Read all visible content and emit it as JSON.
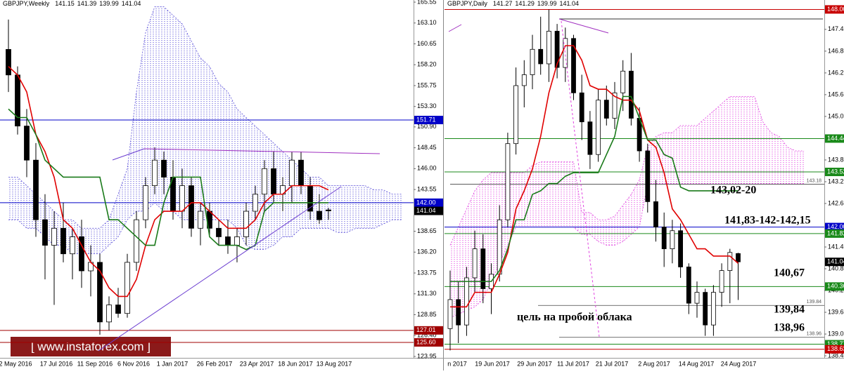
{
  "watermark": "[ www.instaforex.com ]",
  "chart_data": [
    {
      "type": "candlestick",
      "symbol": "GBPJPY,Weekly",
      "ohlc": [
        141.15,
        141.39,
        139.99,
        141.04
      ],
      "ylim": [
        122.96,
        165.8
      ],
      "yticks": [
        165.55,
        {
          "value": 163.1,
          "label": "163.10"
        },
        160.65,
        {
          "value": 158.2,
          "label": "158.20"
        },
        155.75,
        {
          "value": 153.3,
          "label": "153.30"
        },
        {
          "value": 150.9,
          "label": "150.90"
        },
        148.45,
        {
          "value": 146,
          "label": "146.00"
        },
        143.55,
        138.65,
        {
          "value": 136.2,
          "label": "136.20"
        },
        133.75,
        {
          "value": 131.3,
          "label": "131.30"
        },
        128.85,
        {
          "value": 126.4,
          "label": "126.40"
        },
        123.95
      ],
      "xtick_labels": [
        "2 May 2016",
        "17 Jul 2016",
        "11 Sep 2016",
        "6 Nov 2016",
        "1 Jan 2017",
        "26 Feb 2017",
        "23 Apr 2017",
        "18 Jun 2017",
        "13 Aug 2017"
      ],
      "candles": [
        [
          160,
          163.5,
          155,
          157
        ],
        [
          157,
          158,
          150,
          151
        ],
        [
          151,
          153,
          145,
          147
        ],
        [
          147,
          149,
          138,
          140
        ],
        [
          140,
          143,
          133,
          137
        ],
        [
          137,
          141,
          130,
          139
        ],
        [
          139,
          142,
          135,
          136
        ],
        [
          136,
          139,
          133,
          138
        ],
        [
          138,
          140,
          132,
          134
        ],
        [
          134,
          137,
          131,
          135
        ],
        [
          135,
          136,
          126.5,
          128
        ],
        [
          128,
          131,
          127,
          130
        ],
        [
          130,
          132,
          128.5,
          129
        ],
        [
          129,
          136,
          128.5,
          135
        ],
        [
          135,
          141,
          134,
          140
        ],
        [
          140,
          145,
          139,
          144
        ],
        [
          144,
          148.5,
          143,
          147
        ],
        [
          147,
          148,
          143,
          145
        ],
        [
          145,
          147,
          140,
          141
        ],
        [
          141,
          146,
          139,
          144
        ],
        [
          144,
          145,
          138,
          139
        ],
        [
          139,
          142,
          137,
          141
        ],
        [
          141,
          142,
          138,
          139
        ],
        [
          139,
          140,
          137,
          138
        ],
        [
          138,
          140,
          136,
          137
        ],
        [
          137,
          139,
          135,
          138
        ],
        [
          138,
          142,
          137,
          141
        ],
        [
          141,
          144,
          140,
          143
        ],
        [
          143,
          147,
          141,
          146
        ],
        [
          146,
          148,
          142,
          143
        ],
        [
          143,
          145,
          141,
          144
        ],
        [
          144,
          148,
          142,
          147
        ],
        [
          147,
          148,
          143,
          144
        ],
        [
          144,
          145,
          140,
          141
        ],
        [
          141,
          143,
          139.5,
          140
        ],
        [
          141.15,
          141.39,
          139.99,
          141.04
        ]
      ],
      "lines": [
        {
          "color": "#e00000",
          "values": [
            158,
            157,
            155,
            150,
            148,
            145,
            140,
            139,
            137,
            135,
            134,
            132,
            131,
            131,
            133,
            137,
            140,
            141,
            141,
            141,
            142,
            142,
            141,
            140,
            139,
            139,
            139,
            140,
            142,
            143,
            143,
            144,
            144,
            144,
            144,
            143.5
          ]
        },
        {
          "color": "#1a7a1a",
          "values": [
            153,
            152,
            152,
            150,
            147,
            146,
            145,
            145,
            145,
            145,
            145,
            140,
            140,
            139,
            138,
            137,
            137,
            142,
            145,
            145,
            145,
            145,
            138,
            137,
            137,
            137,
            136.5,
            137,
            141,
            142,
            142,
            142,
            142,
            142,
            142,
            142
          ]
        }
      ],
      "cloud": {
        "color": "#5a4fd8",
        "upper": [
          145,
          145,
          144,
          143,
          142,
          141,
          140,
          140,
          139,
          139,
          139,
          140,
          143,
          146,
          155,
          162,
          165,
          165,
          164,
          163,
          161,
          159,
          158,
          156,
          155,
          153,
          152,
          151,
          150,
          149,
          148,
          147,
          146,
          145,
          145,
          144,
          144,
          144,
          144,
          144,
          143.5,
          143.5,
          143,
          143
        ],
        "lower": [
          140,
          140,
          139,
          139,
          138,
          137,
          137,
          136,
          136,
          136,
          136,
          137,
          138,
          140,
          141,
          141,
          142,
          141,
          141,
          140,
          140,
          140,
          140,
          140,
          140,
          139,
          137,
          136.5,
          136.5,
          137,
          138,
          138,
          139,
          139,
          139,
          139,
          138.5,
          138.5,
          139,
          139,
          139,
          139.5,
          140,
          140
        ]
      },
      "levels": [
        {
          "value": 151.71,
          "color": "#0000c8"
        },
        {
          "value": 142,
          "label": "142.00",
          "color": "#0000c8"
        },
        {
          "value": 141.04,
          "color": "#000000",
          "line": false
        },
        {
          "value": 127.01,
          "color": "#a00000"
        },
        {
          "value": 125.6,
          "label": "125.60",
          "color": "#a00000"
        }
      ],
      "level_notes": [],
      "annotations": []
    },
    {
      "type": "candlestick",
      "symbol": "GBPJPY,Daily",
      "ohlc": [
        141.27,
        141.29,
        139.99,
        141.04
      ],
      "ylim": [
        138.2,
        148.26
      ],
      "yticks": [
        147.45,
        146.85,
        146.25,
        145.65,
        145.05,
        143.85,
        143.25,
        142.65,
        141.45,
        140.85,
        140.25,
        139.65,
        139.05,
        138.45
      ],
      "xtick_labels": [
        "n 2017",
        "19 Jun 2017",
        "29 Jun 2017",
        "11 Jul 2017",
        "21 Jul 2017",
        "2 Aug 2017",
        "14 Aug 2017",
        "24 Aug 2017"
      ],
      "candles": [
        [
          139.2,
          140.8,
          138.6,
          140.0
        ],
        [
          140.0,
          140.5,
          138.8,
          139.3
        ],
        [
          139.3,
          140.9,
          139.0,
          140.6
        ],
        [
          140.6,
          141.9,
          140.2,
          141.4
        ],
        [
          141.4,
          141.8,
          139.9,
          140.3
        ],
        [
          140.3,
          141.0,
          139.6,
          140.7
        ],
        [
          140.7,
          142.6,
          140.5,
          142.2
        ],
        [
          142.2,
          144.6,
          142.0,
          144.3
        ],
        [
          144.3,
          146.4,
          144.0,
          145.9
        ],
        [
          145.9,
          146.6,
          145.3,
          146.2
        ],
        [
          146.2,
          147.3,
          145.8,
          146.9
        ],
        [
          146.9,
          147.8,
          146.2,
          146.5
        ],
        [
          146.5,
          148.0,
          146.0,
          147.4
        ],
        [
          147.4,
          147.6,
          146.1,
          146.4
        ],
        [
          146.4,
          147.5,
          146.0,
          147.2
        ],
        [
          147.2,
          147.3,
          145.5,
          145.7
        ],
        [
          145.7,
          146.2,
          144.4,
          144.9
        ],
        [
          144.9,
          145.2,
          143.6,
          144.0
        ],
        [
          144.0,
          145.8,
          143.8,
          145.5
        ],
        [
          145.5,
          145.9,
          144.8,
          145.0
        ],
        [
          145.0,
          146.0,
          144.7,
          145.7
        ],
        [
          145.7,
          146.6,
          145.2,
          146.3
        ],
        [
          146.3,
          146.8,
          144.8,
          145.0
        ],
        [
          145.0,
          145.3,
          143.8,
          144.1
        ],
        [
          144.1,
          144.3,
          142.4,
          142.7
        ],
        [
          142.7,
          143.3,
          141.6,
          142.0
        ],
        [
          142.0,
          142.4,
          140.9,
          141.4
        ],
        [
          141.4,
          142.2,
          141.0,
          141.9
        ],
        [
          141.9,
          142.1,
          140.6,
          140.9
        ],
        [
          140.9,
          141.0,
          139.6,
          139.9
        ],
        [
          139.9,
          140.5,
          139.5,
          140.2
        ],
        [
          140.2,
          140.3,
          139.0,
          139.3
        ],
        [
          139.3,
          140.4,
          139.0,
          140.2
        ],
        [
          140.2,
          141.0,
          139.8,
          140.8
        ],
        [
          140.8,
          141.4,
          139.9,
          141.3
        ],
        [
          141.27,
          141.29,
          139.99,
          141.04
        ]
      ],
      "lines": [
        {
          "color": "#e00000",
          "values": [
            139.8,
            139.8,
            139.8,
            140.2,
            140.2,
            140.2,
            140.7,
            141.3,
            142.5,
            143.0,
            143.6,
            144.5,
            145.7,
            146.5,
            147.0,
            147.0,
            146.6,
            145.9,
            145.8,
            145.8,
            145.6,
            145.5,
            145.5,
            145.2,
            144.4,
            144.2,
            143.5,
            142.5,
            142.2,
            141.8,
            141.4,
            141.4,
            141.2,
            141.2,
            141.2,
            141.0
          ]
        },
        {
          "color": "#1a7a1a",
          "values": [
            140.5,
            140.5,
            140.5,
            140.5,
            140.5,
            140.5,
            140.8,
            141.4,
            142.2,
            142.2,
            142.9,
            143.0,
            143.2,
            143.2,
            143.4,
            143.5,
            143.5,
            143.5,
            143.5,
            144.0,
            144.5,
            145.6,
            145.6,
            145.0,
            144.4,
            144.4,
            144.0,
            143.9,
            143.1,
            143.0,
            143.0,
            143.0,
            143.0,
            143.0,
            143.0,
            143.0
          ]
        }
      ],
      "cloud": {
        "color": "#e040e0",
        "upper": [
          141.5,
          142.0,
          142.5,
          143.0,
          143.3,
          143.5,
          143.5,
          143.5,
          143.5,
          143.5,
          143.7,
          143.8,
          143.8,
          143.8,
          143.8,
          143.8,
          142.4,
          142.4,
          142.2,
          142.2,
          142.3,
          142.6,
          142.9,
          143.3,
          144.2,
          144.5,
          144.6,
          144.6,
          144.8,
          144.8,
          144.8,
          145.0,
          145.2,
          145.4,
          145.6,
          145.6,
          145.6,
          145.6,
          144.9,
          144.6,
          144.5,
          144.2,
          144.1,
          144.1
        ],
        "lower": [
          139.5,
          139.6,
          139.7,
          139.8,
          140.0,
          140.5,
          141.0,
          141.5,
          142.0,
          142.0,
          142.0,
          142.0,
          142.0,
          142.0,
          142.0,
          142.0,
          141.8,
          141.8,
          141.6,
          141.5,
          141.5,
          141.6,
          141.8,
          142.0,
          143.2,
          143.2,
          143.2,
          143.2,
          143.2,
          143.2,
          143.2,
          143.2,
          143.2,
          143.2,
          143.2,
          143.2,
          143.2,
          143.2,
          143.2,
          143.2,
          143.2,
          143.2,
          143.2,
          143.2
        ]
      },
      "levels": [
        {
          "value": 148,
          "label": "148.00",
          "color": "#c80000"
        },
        {
          "value": 144.44,
          "color": "#1a8a1a"
        },
        {
          "value": 143.52,
          "color": "#1a8a1a"
        },
        {
          "value": 142,
          "label": "142.00",
          "color": "#0000c8"
        },
        {
          "value": 141.82,
          "color": "#1a8a1a"
        },
        {
          "value": 141.04,
          "color": "#000000",
          "line": false
        },
        {
          "value": 140.36,
          "color": "#1a8a1a"
        },
        {
          "value": 138.77,
          "color": "#1a8a1a"
        },
        {
          "value": 138.63,
          "color": "#c80000"
        }
      ],
      "level_notes": [
        139.84,
        138.96,
        143.18
      ],
      "annotations": [
        "143,02-20",
        "141,83-142-142,15",
        "140,67",
        "139,84",
        "138,96",
        "цель на пробой облака"
      ]
    }
  ]
}
